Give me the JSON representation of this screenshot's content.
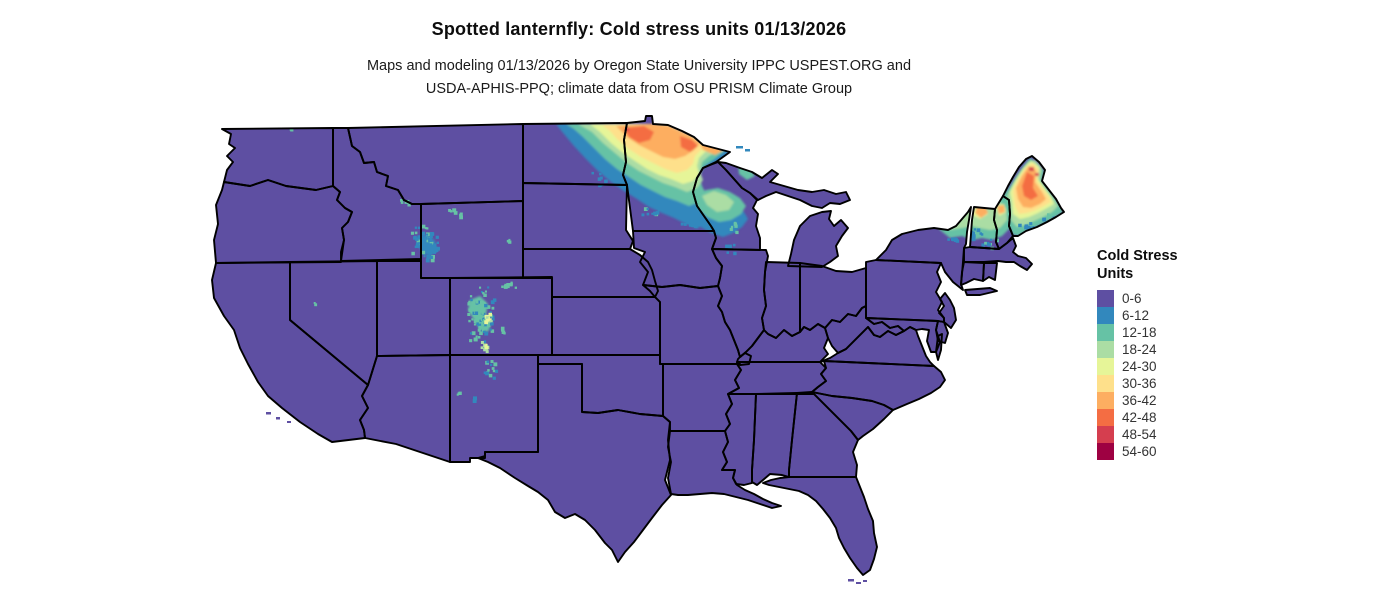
{
  "title": "Spotted lanternfly: Cold stress units 01/13/2026",
  "subtitle_line1": "Maps and modeling 01/13/2026 by Oregon State University IPPC USPEST.ORG and",
  "subtitle_line2": "USDA-APHIS-PPQ; climate data from OSU PRISM Climate Group",
  "legend": {
    "title_line1": "Cold Stress",
    "title_line2": "Units",
    "bins": [
      {
        "label": "0-6",
        "color": "#5e4fa2"
      },
      {
        "label": "6-12",
        "color": "#3288bd"
      },
      {
        "label": "12-18",
        "color": "#66c2a5"
      },
      {
        "label": "18-24",
        "color": "#abdda4"
      },
      {
        "label": "24-30",
        "color": "#e6f598"
      },
      {
        "label": "30-36",
        "color": "#fee08b"
      },
      {
        "label": "36-42",
        "color": "#fdae61"
      },
      {
        "label": "42-48",
        "color": "#f46d43"
      },
      {
        "label": "48-54",
        "color": "#d53e4f"
      },
      {
        "label": "54-60",
        "color": "#9e0142"
      }
    ]
  },
  "map": {
    "region": "Contiguous United States",
    "background_color": "#ffffff",
    "state_border_color": "#000000",
    "base_bin_label": "0-6",
    "high_stress_areas": [
      "northeastern North Dakota and northern Minnesota",
      "northern Wisconsin",
      "Adirondacks of northern New York",
      "northern Vermont and New Hampshire",
      "northern and central Maine",
      "western Wyoming ranges",
      "Colorado Rockies into northern New Mexico"
    ]
  }
}
